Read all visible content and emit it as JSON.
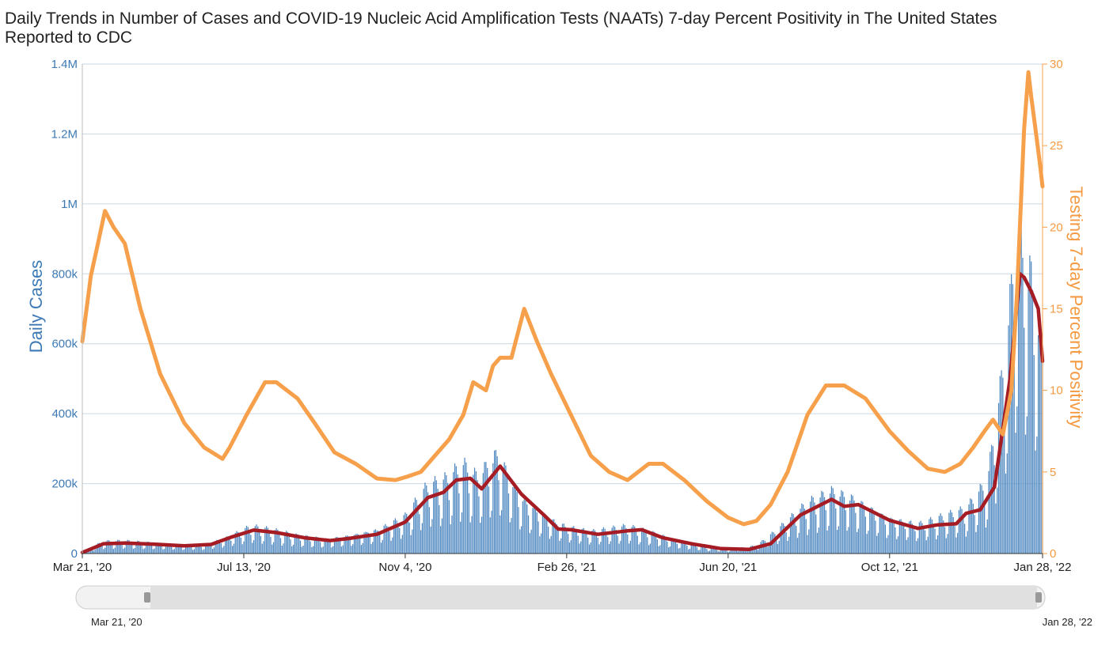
{
  "chart_data": {
    "type": "bar+line",
    "title": "Daily Trends in Number of Cases and COVID-19 Nucleic Acid Amplification Tests (NAATs) 7-day Percent Positivity in The United States Reported to CDC",
    "ylabel_left": "Daily Cases",
    "ylabel_right": "Testing 7-day Percent Positivity",
    "ylim_left": [
      0,
      1400000
    ],
    "ylim_right": [
      0,
      30
    ],
    "yticks_left": [
      "0",
      "200k",
      "400k",
      "600k",
      "800k",
      "1M",
      "1.2M",
      "1.4M"
    ],
    "yticks_right": [
      "0",
      "5",
      "10",
      "15",
      "20",
      "25",
      "30"
    ],
    "x_start": "2020-03-21",
    "x_end": "2022-01-28",
    "xticks": [
      {
        "date": "2020-03-21",
        "label": "Mar 21, '20"
      },
      {
        "date": "2020-07-13",
        "label": "Jul 13, '20"
      },
      {
        "date": "2020-11-04",
        "label": "Nov 4, '20"
      },
      {
        "date": "2021-02-26",
        "label": "Feb 26, '21"
      },
      {
        "date": "2021-06-20",
        "label": "Jun 20, '21"
      },
      {
        "date": "2021-10-12",
        "label": "Oct 12, '21"
      },
      {
        "date": "2022-01-28",
        "label": "Jan 28, '22"
      }
    ],
    "navigator": {
      "start_label": "Mar 21, '20",
      "end_label": "Jan 28, '22"
    },
    "colors": {
      "bars": "#4f88c0",
      "cases_avg": "#a51c24",
      "positivity": "#f7a04b",
      "grid": "#c9d7e3"
    },
    "series": [
      {
        "kind": "daily_cases_bars",
        "points": [
          [
            "2020-03-21",
            5000
          ],
          [
            "2020-04-05",
            30000
          ],
          [
            "2020-04-20",
            32000
          ],
          [
            "2020-05-10",
            27000
          ],
          [
            "2020-05-31",
            22000
          ],
          [
            "2020-06-15",
            22000
          ],
          [
            "2020-07-01",
            40000
          ],
          [
            "2020-07-18",
            68000
          ],
          [
            "2020-08-01",
            60000
          ],
          [
            "2020-08-20",
            45000
          ],
          [
            "2020-09-10",
            36000
          ],
          [
            "2020-09-25",
            45000
          ],
          [
            "2020-10-15",
            60000
          ],
          [
            "2020-11-04",
            95000
          ],
          [
            "2020-11-20",
            170000
          ],
          [
            "2020-12-01",
            180000
          ],
          [
            "2020-12-15",
            220000
          ],
          [
            "2020-12-25",
            190000
          ],
          [
            "2021-01-08",
            250000
          ],
          [
            "2021-01-25",
            140000
          ],
          [
            "2021-02-10",
            95000
          ],
          [
            "2021-02-26",
            68000
          ],
          [
            "2021-03-15",
            55000
          ],
          [
            "2021-04-10",
            68000
          ],
          [
            "2021-04-25",
            55000
          ],
          [
            "2021-05-15",
            32000
          ],
          [
            "2021-06-05",
            15000
          ],
          [
            "2021-06-20",
            10000
          ],
          [
            "2021-07-10",
            20000
          ],
          [
            "2021-07-25",
            60000
          ],
          [
            "2021-08-15",
            125000
          ],
          [
            "2021-09-01",
            155000
          ],
          [
            "2021-09-15",
            140000
          ],
          [
            "2021-10-01",
            110000
          ],
          [
            "2021-10-12",
            90000
          ],
          [
            "2021-11-01",
            75000
          ],
          [
            "2021-11-20",
            95000
          ],
          [
            "2021-12-05",
            110000
          ],
          [
            "2021-12-20",
            180000
          ],
          [
            "2022-01-01",
            480000
          ],
          [
            "2022-01-10",
            800000
          ],
          [
            "2022-01-20",
            700000
          ],
          [
            "2022-01-28",
            520000
          ]
        ]
      },
      {
        "kind": "cases_7day_average_line",
        "points": [
          [
            "2020-03-21",
            3000
          ],
          [
            "2020-04-05",
            28000
          ],
          [
            "2020-04-20",
            30000
          ],
          [
            "2020-05-10",
            27000
          ],
          [
            "2020-06-01",
            22000
          ],
          [
            "2020-06-20",
            26000
          ],
          [
            "2020-07-05",
            48000
          ],
          [
            "2020-07-20",
            67000
          ],
          [
            "2020-08-05",
            60000
          ],
          [
            "2020-08-25",
            45000
          ],
          [
            "2020-09-12",
            37000
          ],
          [
            "2020-09-25",
            43000
          ],
          [
            "2020-10-15",
            55000
          ],
          [
            "2020-11-04",
            90000
          ],
          [
            "2020-11-20",
            160000
          ],
          [
            "2020-12-01",
            175000
          ],
          [
            "2020-12-10",
            210000
          ],
          [
            "2020-12-20",
            215000
          ],
          [
            "2020-12-28",
            185000
          ],
          [
            "2021-01-10",
            250000
          ],
          [
            "2021-01-25",
            170000
          ],
          [
            "2021-02-10",
            110000
          ],
          [
            "2021-02-20",
            70000
          ],
          [
            "2021-03-01",
            68000
          ],
          [
            "2021-03-20",
            55000
          ],
          [
            "2021-04-10",
            65000
          ],
          [
            "2021-04-20",
            68000
          ],
          [
            "2021-05-05",
            45000
          ],
          [
            "2021-05-25",
            28000
          ],
          [
            "2021-06-15",
            14000
          ],
          [
            "2021-07-05",
            12000
          ],
          [
            "2021-07-20",
            28000
          ],
          [
            "2021-08-10",
            110000
          ],
          [
            "2021-09-01",
            155000
          ],
          [
            "2021-09-10",
            135000
          ],
          [
            "2021-09-20",
            140000
          ],
          [
            "2021-10-12",
            95000
          ],
          [
            "2021-11-01",
            72000
          ],
          [
            "2021-11-15",
            82000
          ],
          [
            "2021-11-28",
            85000
          ],
          [
            "2021-12-05",
            115000
          ],
          [
            "2021-12-15",
            125000
          ],
          [
            "2021-12-25",
            190000
          ],
          [
            "2022-01-05",
            500000
          ],
          [
            "2022-01-12",
            800000
          ],
          [
            "2022-01-15",
            790000
          ],
          [
            "2022-01-20",
            750000
          ],
          [
            "2022-01-25",
            700000
          ],
          [
            "2022-01-28",
            550000
          ]
        ]
      },
      {
        "kind": "positivity_line",
        "points": [
          [
            "2020-03-21",
            13
          ],
          [
            "2020-03-27",
            17
          ],
          [
            "2020-04-01",
            19
          ],
          [
            "2020-04-06",
            21
          ],
          [
            "2020-04-12",
            20
          ],
          [
            "2020-04-20",
            19
          ],
          [
            "2020-05-01",
            15
          ],
          [
            "2020-05-15",
            11
          ],
          [
            "2020-06-01",
            8
          ],
          [
            "2020-06-15",
            6.5
          ],
          [
            "2020-06-28",
            5.8
          ],
          [
            "2020-07-03",
            6.5
          ],
          [
            "2020-07-15",
            8.5
          ],
          [
            "2020-07-28",
            10.5
          ],
          [
            "2020-08-05",
            10.5
          ],
          [
            "2020-08-20",
            9.5
          ],
          [
            "2020-09-01",
            8
          ],
          [
            "2020-09-15",
            6.2
          ],
          [
            "2020-09-30",
            5.5
          ],
          [
            "2020-10-15",
            4.6
          ],
          [
            "2020-10-28",
            4.5
          ],
          [
            "2020-11-05",
            4.7
          ],
          [
            "2020-11-15",
            5
          ],
          [
            "2020-11-25",
            6
          ],
          [
            "2020-12-05",
            7
          ],
          [
            "2020-12-15",
            8.5
          ],
          [
            "2020-12-22",
            10.5
          ],
          [
            "2020-12-31",
            10
          ],
          [
            "2021-01-05",
            11.5
          ],
          [
            "2021-01-10",
            12
          ],
          [
            "2021-01-18",
            12
          ],
          [
            "2021-01-27",
            15
          ],
          [
            "2021-02-05",
            13
          ],
          [
            "2021-02-15",
            11
          ],
          [
            "2021-03-01",
            8.5
          ],
          [
            "2021-03-15",
            6
          ],
          [
            "2021-03-28",
            5
          ],
          [
            "2021-04-10",
            4.5
          ],
          [
            "2021-04-25",
            5.5
          ],
          [
            "2021-05-05",
            5.5
          ],
          [
            "2021-05-20",
            4.5
          ],
          [
            "2021-06-05",
            3.2
          ],
          [
            "2021-06-20",
            2.2
          ],
          [
            "2021-07-01",
            1.8
          ],
          [
            "2021-07-10",
            2
          ],
          [
            "2021-07-20",
            3
          ],
          [
            "2021-08-01",
            5
          ],
          [
            "2021-08-15",
            8.5
          ],
          [
            "2021-08-28",
            10.3
          ],
          [
            "2021-09-10",
            10.3
          ],
          [
            "2021-09-25",
            9.5
          ],
          [
            "2021-10-12",
            7.5
          ],
          [
            "2021-10-25",
            6.3
          ],
          [
            "2021-11-08",
            5.2
          ],
          [
            "2021-11-20",
            5
          ],
          [
            "2021-12-01",
            5.5
          ],
          [
            "2021-12-10",
            6.5
          ],
          [
            "2021-12-18",
            7.5
          ],
          [
            "2021-12-24",
            8.2
          ],
          [
            "2021-12-31",
            7.3
          ],
          [
            "2022-01-06",
            10
          ],
          [
            "2022-01-10",
            16
          ],
          [
            "2022-01-15",
            26
          ],
          [
            "2022-01-18",
            29.5
          ],
          [
            "2022-01-20",
            28
          ],
          [
            "2022-01-23",
            26
          ],
          [
            "2022-01-26",
            24
          ],
          [
            "2022-01-28",
            22.5
          ]
        ]
      }
    ]
  }
}
